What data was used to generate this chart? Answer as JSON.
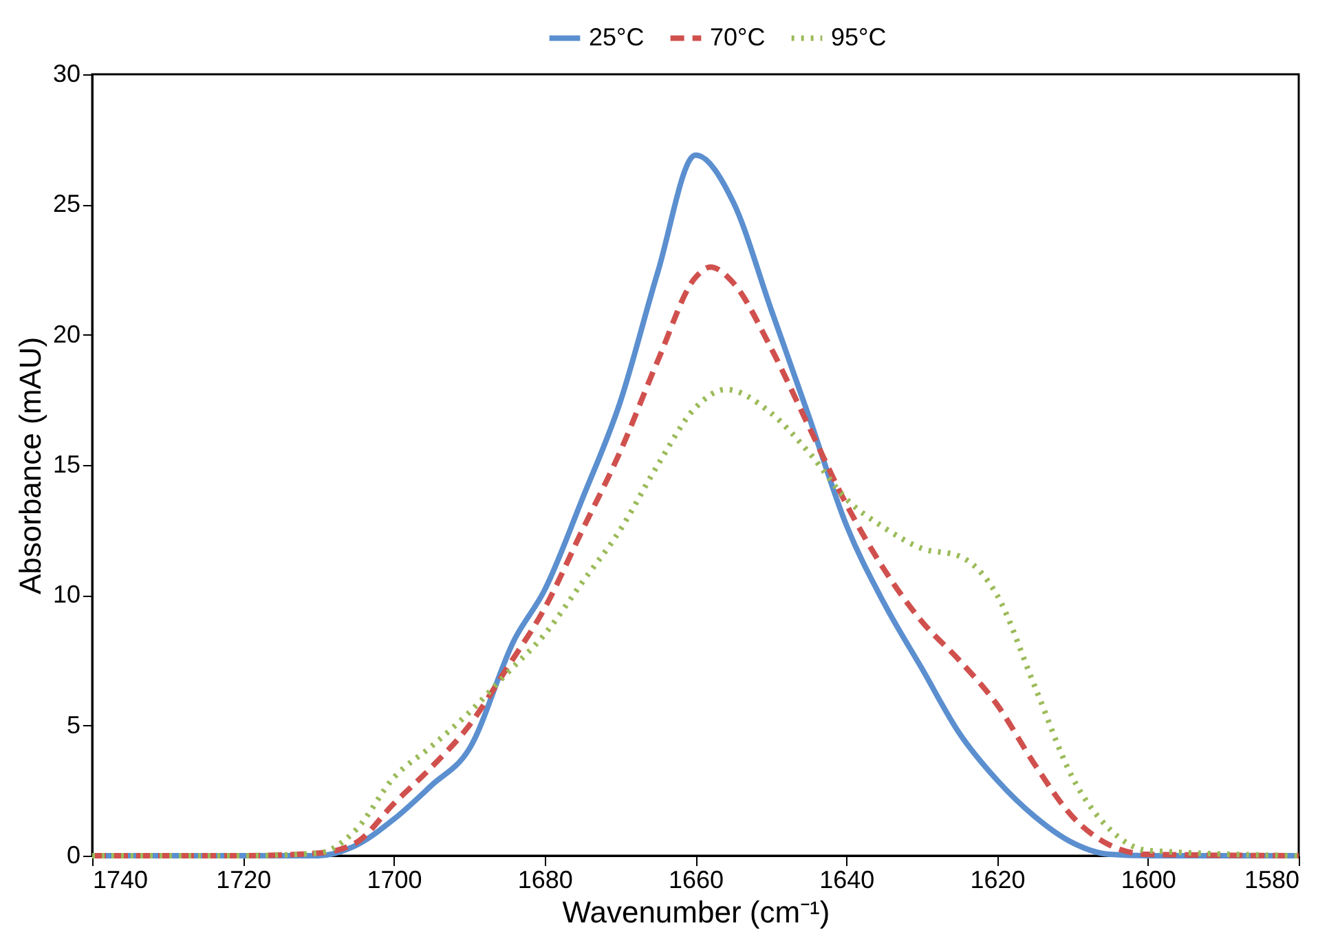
{
  "chart_data": {
    "type": "line",
    "xlabel": "Wavenumber (cm⁻¹)",
    "ylabel": "Absorbance (mAU)",
    "xlim": [
      1740,
      1580
    ],
    "ylim": [
      0,
      30
    ],
    "xticks": [
      1740,
      1720,
      1700,
      1680,
      1660,
      1640,
      1620,
      1600,
      1580
    ],
    "yticks": [
      0,
      5,
      10,
      15,
      20,
      25,
      30
    ],
    "grid": false,
    "legend": "top",
    "marker": "none",
    "series": [
      {
        "name": "25°C",
        "color": "#5b8fcf",
        "line_style": "solid",
        "x": [
          1740,
          1720,
          1710,
          1705,
          1700,
          1695,
          1690,
          1684,
          1680,
          1675,
          1670,
          1665,
          1660,
          1655,
          1650,
          1645,
          1640,
          1635,
          1630,
          1625,
          1620,
          1615,
          1610,
          1605,
          1600,
          1580
        ],
        "values": [
          0,
          0,
          0,
          0.4,
          1.4,
          2.7,
          4.1,
          8.3,
          10.2,
          13.7,
          17.4,
          22.4,
          26.9,
          25.1,
          21.0,
          16.9,
          12.7,
          9.7,
          7.2,
          4.7,
          2.9,
          1.5,
          0.5,
          0.05,
          0,
          0
        ]
      },
      {
        "name": "70°C",
        "color": "#d0504d",
        "line_style": "dashed",
        "x": [
          1740,
          1720,
          1710,
          1705,
          1700,
          1695,
          1690,
          1685,
          1680,
          1675,
          1670,
          1665,
          1660,
          1658,
          1655,
          1650,
          1645,
          1640,
          1635,
          1630,
          1625,
          1620,
          1615,
          1610,
          1605,
          1600,
          1580
        ],
        "values": [
          0,
          0,
          0.1,
          0.5,
          2,
          3.4,
          5,
          7.2,
          9.5,
          12.5,
          15.5,
          19,
          22.2,
          22.6,
          22.0,
          19.5,
          16.5,
          13.5,
          11,
          9,
          7.5,
          5.8,
          3.5,
          1.5,
          0.4,
          0.05,
          0
        ]
      },
      {
        "name": "95°C",
        "color": "#9bbb59",
        "line_style": "dotted",
        "x": [
          1740,
          1720,
          1710,
          1705,
          1700,
          1695,
          1690,
          1685,
          1680,
          1675,
          1670,
          1665,
          1660,
          1656,
          1650,
          1645,
          1640,
          1635,
          1630,
          1625,
          1620,
          1615,
          1610,
          1605,
          1600,
          1580
        ],
        "values": [
          0,
          0,
          0.1,
          1.0,
          3,
          4.2,
          5.5,
          7,
          8.5,
          10.5,
          12.5,
          15,
          17.2,
          17.9,
          17.0,
          15.5,
          13.7,
          12.6,
          11.8,
          11.5,
          10,
          6.5,
          3,
          1,
          0.2,
          0
        ]
      }
    ]
  }
}
